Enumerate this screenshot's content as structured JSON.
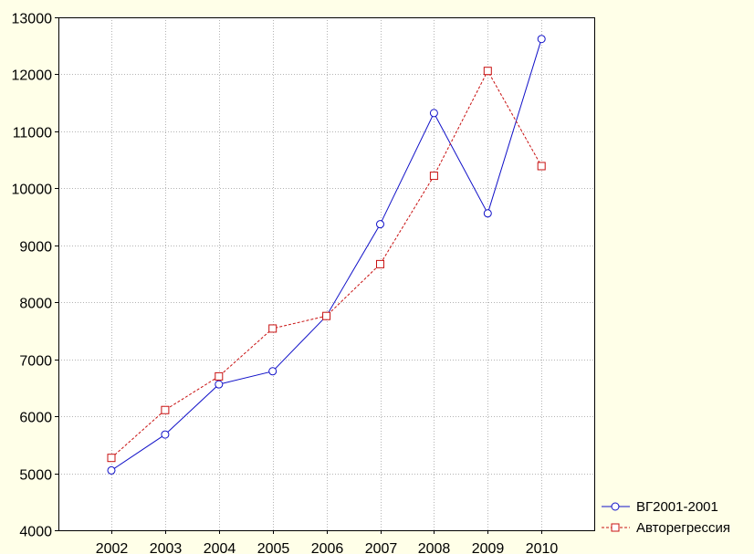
{
  "chart_data": {
    "type": "line",
    "title": "",
    "xlabel": "",
    "ylabel": "",
    "categories": [
      "2002",
      "2003",
      "2004",
      "2005",
      "2006",
      "2007",
      "2008",
      "2009",
      "2010"
    ],
    "ylim": [
      4000,
      13000
    ],
    "yticks": [
      4000,
      5000,
      6000,
      7000,
      8000,
      9000,
      10000,
      11000,
      12000,
      13000
    ],
    "grid": true,
    "legend_position": "bottom-right",
    "plot_background": "#ffffff",
    "outer_background": "#ffffe8",
    "series": [
      {
        "name": "ВГ2001-2001",
        "values": [
          5050,
          5680,
          6560,
          6790,
          7760,
          9370,
          11320,
          9560,
          12620
        ],
        "color": "#1010c8",
        "line_style": "solid",
        "marker": "circle"
      },
      {
        "name": "Авторегрессия",
        "values": [
          5270,
          6110,
          6700,
          7540,
          7760,
          8670,
          10220,
          12060,
          10390
        ],
        "color": "#c81010",
        "line_style": "dashed",
        "marker": "square"
      }
    ]
  }
}
